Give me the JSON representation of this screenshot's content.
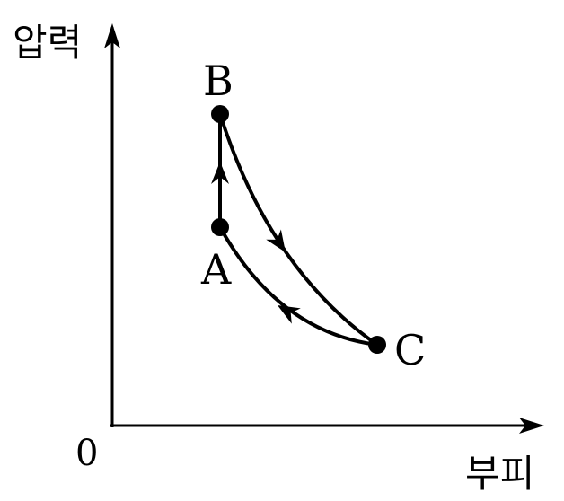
{
  "diagram": {
    "y_axis_label": "압력",
    "x_axis_label": "부피",
    "origin_label": "0",
    "points": {
      "A": "A",
      "B": "B",
      "C": "C"
    },
    "colors": {
      "stroke": "#000000",
      "background": "#ffffff"
    }
  }
}
